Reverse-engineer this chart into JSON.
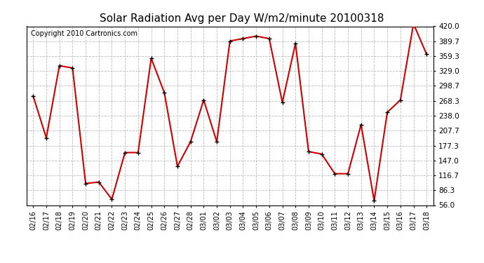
{
  "title": "Solar Radiation Avg per Day W/m2/minute 20100318",
  "copyright": "Copyright 2010 Cartronics.com",
  "dates": [
    "02/16",
    "02/17",
    "02/18",
    "02/19",
    "02/20",
    "02/21",
    "02/22",
    "02/23",
    "02/24",
    "02/25",
    "02/26",
    "02/27",
    "02/28",
    "03/01",
    "03/02",
    "03/03",
    "03/04",
    "03/05",
    "03/06",
    "03/07",
    "03/08",
    "03/09",
    "03/10",
    "03/11",
    "03/12",
    "03/13",
    "03/14",
    "03/15",
    "03/16",
    "03/17",
    "03/18"
  ],
  "values": [
    278,
    193,
    340,
    335,
    100,
    103,
    68,
    163,
    163,
    355,
    285,
    135,
    185,
    270,
    185,
    390,
    395,
    400,
    395,
    265,
    385,
    165,
    160,
    120,
    120,
    220,
    65,
    245,
    270,
    425,
    363
  ],
  "line_color": "#cc0000",
  "marker_color": "#000000",
  "background_color": "#ffffff",
  "grid_color": "#aaaaaa",
  "plot_bg_color": "#ffffff",
  "ymin": 56.0,
  "ymax": 420.0,
  "yticks": [
    56.0,
    86.3,
    116.7,
    147.0,
    177.3,
    207.7,
    238.0,
    268.3,
    298.7,
    329.0,
    359.3,
    389.7,
    420.0
  ],
  "title_fontsize": 11,
  "copyright_fontsize": 7,
  "outer_bg_color": "#000000"
}
